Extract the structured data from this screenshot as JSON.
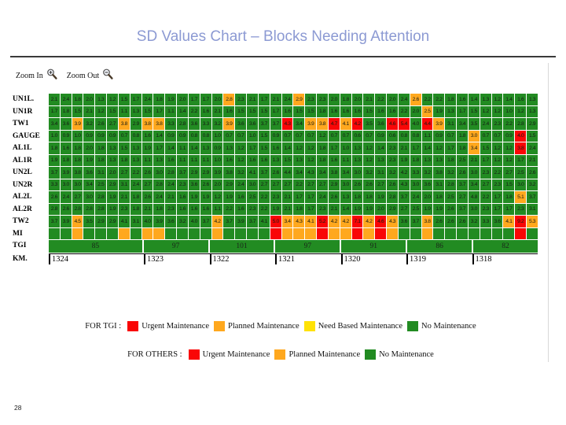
{
  "slide": {
    "title": "SD Values Chart – Blocks Needing Attention",
    "page_number": "28"
  },
  "toolbar": {
    "zoom_in_label": "Zoom In",
    "zoom_out_label": "Zoom Out"
  },
  "colors": {
    "green": "#228B22",
    "orange": "#FFA81E",
    "red": "#F90606",
    "yellow": "#FFE205",
    "title_blue": "#8C9AD3"
  },
  "chart_data": {
    "type": "heatmap",
    "title": "SD Values Chart – Blocks Needing Attention",
    "columns": 42,
    "legend_position": "bottom",
    "color_key": {
      "g": "#228B22",
      "o": "#FFA81E",
      "r": "#F90606",
      "y": "#FFE205"
    },
    "rows": [
      {
        "label": "UN1L.",
        "values": [
          2.1,
          2.4,
          1.8,
          2.0,
          1.3,
          1.2,
          1.5,
          1.7,
          2.4,
          1.8,
          1.9,
          2.0,
          1.7,
          1.7,
          2.0,
          2.8,
          2.3,
          2.1,
          1.7,
          2.1,
          2.4,
          2.9,
          2.3,
          2.3,
          2.0,
          1.8,
          2.0,
          2.1,
          2.2,
          2.0,
          2.4,
          2.6,
          2.2,
          2.2,
          1.8,
          1.6,
          1.4,
          1.3,
          1.2,
          1.4,
          1.6,
          1.3
        ],
        "colors": {
          "16": "o",
          "22": "o",
          "32": "o"
        }
      },
      {
        "label": "UN1R",
        "values": [
          1.7,
          1.8,
          1.5,
          2.1,
          1.2,
          1.5,
          1.1,
          1.3,
          1.5,
          1.7,
          1.1,
          1.4,
          2.2,
          1.6,
          2.1,
          1.6,
          1.5,
          1.5,
          1.5,
          1.7,
          1.6,
          1.5,
          1.5,
          1.8,
          1.6,
          1.6,
          1.6,
          1.5,
          1.6,
          1.6,
          2.2,
          2.0,
          2.5,
          1.9,
          1.3,
          1.7,
          1.5,
          1.2,
          1.2,
          1.0,
          1.2,
          1.3
        ],
        "colors": {
          "33": "o"
        }
      },
      {
        "label": "TW1",
        "values": [
          3.4,
          3.6,
          3.9,
          3.2,
          2.6,
          2.7,
          3.8,
          2.9,
          3.8,
          3.8,
          3.3,
          2.8,
          3.6,
          3.3,
          3.2,
          3.9,
          3.6,
          3.6,
          3.7,
          3.7,
          4.3,
          3.4,
          3.9,
          3.8,
          4.7,
          4.1,
          4.2,
          3.5,
          3.6,
          4.6,
          5.4,
          4.0,
          4.4,
          3.9,
          3.1,
          3.4,
          3.5,
          2.4,
          2.3,
          2.2,
          2.8,
          2.9
        ],
        "colors": {
          "3": "o",
          "7": "o",
          "9": "o",
          "10": "o",
          "16": "o",
          "21": "r",
          "23": "o",
          "24": "o",
          "25": "r",
          "26": "o",
          "27": "r",
          "30": "r",
          "31": "r",
          "33": "r",
          "34": "o"
        }
      },
      {
        "label": "GAUGE",
        "values": [
          1.0,
          0.9,
          1.0,
          0.9,
          0.9,
          0.9,
          0.7,
          0.8,
          1.6,
          1.4,
          0.9,
          0.9,
          0.8,
          0.8,
          1.0,
          0.7,
          0.7,
          1.0,
          1.5,
          0.9,
          0.7,
          0.7,
          0.7,
          1.2,
          0.7,
          0.7,
          0.6,
          0.7,
          0.9,
          0.6,
          0.8,
          0.8,
          1.1,
          0.9,
          0.7,
          1.8,
          3.0,
          0.7,
          0.7,
          0.9,
          4.0,
          1.5
        ],
        "colors": {
          "37": "o",
          "41": "r"
        }
      },
      {
        "label": "AL1L",
        "values": [
          1.8,
          1.6,
          1.8,
          2.0,
          1.8,
          1.3,
          1.5,
          1.3,
          1.9,
          1.7,
          1.4,
          1.1,
          1.4,
          1.3,
          0.9,
          1.3,
          1.2,
          1.7,
          1.5,
          1.6,
          1.4,
          1.2,
          1.2,
          1.8,
          1.7,
          1.0,
          1.3,
          1.2,
          1.4,
          2.3,
          2.1,
          1.7,
          1.4,
          1.2,
          1.7,
          1.8,
          3.4,
          1.5,
          1.2,
          1.2,
          3.8,
          2.4
        ],
        "colors": {
          "37": "o",
          "41": "r"
        }
      },
      {
        "label": "AL1R",
        "values": [
          1.9,
          1.8,
          1.8,
          1.9,
          1.8,
          1.3,
          1.8,
          1.3,
          1.1,
          1.3,
          1.6,
          1.1,
          1.1,
          1.1,
          1.0,
          1.6,
          1.2,
          1.6,
          1.6,
          1.3,
          1.5,
          1.3,
          1.2,
          1.8,
          1.6,
          1.1,
          1.3,
          1.2,
          1.3,
          2.3,
          1.9,
          1.8,
          1.3,
          1.3,
          1.8,
          2.5,
          2.1,
          1.7,
          1.2,
          1.2,
          1.7,
          2.1
        ],
        "colors": {}
      },
      {
        "label": "UN2L",
        "values": [
          3.7,
          3.9,
          3.8,
          3.6,
          3.1,
          2.0,
          2.7,
          2.2,
          2.6,
          3.0,
          2.8,
          3.7,
          2.9,
          2.9,
          3.9,
          3.8,
          3.2,
          4.1,
          3.7,
          2.6,
          4.4,
          3.4,
          4.3,
          3.4,
          3.8,
          3.4,
          3.0,
          3.2,
          3.1,
          3.2,
          4.2,
          3.3,
          3.2,
          3.8,
          3.2,
          2.6,
          3.0,
          2.3,
          2.2,
          2.7,
          2.5,
          2.6
        ],
        "colors": {}
      },
      {
        "label": "UN2R",
        "values": [
          3.3,
          3.0,
          3.0,
          3.4,
          2.5,
          2.9,
          3.1,
          2.4,
          2.7,
          2.8,
          2.4,
          2.3,
          3.6,
          2.6,
          2.0,
          2.9,
          2.4,
          3.0,
          2.7,
          2.7,
          2.7,
          2.2,
          2.7,
          2.7,
          2.9,
          3.0,
          2.6,
          2.6,
          2.7,
          2.6,
          4.3,
          3.0,
          3.6,
          3.1,
          2.8,
          3.7,
          3.4,
          2.7,
          2.3,
          1.5,
          3.0,
          3.2
        ],
        "colors": {}
      },
      {
        "label": "AL2L",
        "values": [
          2.6,
          2.4,
          2.7,
          3.0,
          2.8,
          1.9,
          2.1,
          1.8,
          2.6,
          2.4,
          2.1,
          1.6,
          1.9,
          1.9,
          1.2,
          1.9,
          1.6,
          2.5,
          2.2,
          2.3,
          2.1,
          1.7,
          1.7,
          2.4,
          2.6,
          1.3,
          1.8,
          1.8,
          1.9,
          2.8,
          3.7,
          2.4,
          2.0,
          1.8,
          2.5,
          2.7,
          4.8,
          2.2,
          1.7,
          1.8,
          5.1,
          3.7
        ],
        "colors": {
          "41": "o"
        }
      },
      {
        "label": "AL2R",
        "values": [
          2.8,
          2.6,
          2.8,
          2.8,
          2.8,
          1.9,
          2.3,
          1.8,
          2.1,
          1.8,
          2.3,
          1.6,
          1.6,
          1.6,
          1.1,
          2.2,
          1.6,
          2.3,
          2.2,
          1.9,
          2.1,
          1.8,
          1.7,
          2.3,
          2.1,
          1.4,
          1.9,
          1.9,
          2.0,
          2.9,
          2.7,
          2.5,
          1.9,
          1.9,
          2.6,
          3.7,
          3.0,
          2.3,
          1.7,
          1.7,
          2.3,
          3.1
        ],
        "colors": {}
      },
      {
        "label": "TW2",
        "values": [
          3.7,
          3.9,
          4.5,
          3.5,
          2.9,
          2.9,
          4.1,
          3.1,
          4.0,
          3.9,
          3.6,
          3.2,
          4.0,
          3.7,
          4.2,
          3.7,
          3.9,
          3.7,
          4.1,
          5.0,
          3.4,
          4.3,
          4.1,
          5.2,
          4.2,
          4.2,
          7.1,
          4.2,
          4.6,
          4.3,
          3.6,
          3.7,
          3.8,
          2.6,
          2.6,
          2.6,
          3.2,
          3.3,
          3.6,
          4.1,
          9.2,
          5.3
        ],
        "colors": {
          "3": "o",
          "15": "o",
          "20": "r",
          "21": "o",
          "22": "o",
          "23": "o",
          "24": "r",
          "25": "o",
          "26": "o",
          "27": "r",
          "28": "o",
          "29": "r",
          "30": "o",
          "33": "o",
          "40": "o",
          "41": "r",
          "42": "o"
        }
      }
    ],
    "mi_row": {
      "label": "MI",
      "colors": {
        "3": "o",
        "7": "o",
        "9": "o",
        "10": "o",
        "15": "o",
        "20": "r",
        "21": "o",
        "22": "o",
        "23": "o",
        "24": "r",
        "25": "o",
        "26": "o",
        "27": "r",
        "28": "o",
        "29": "r",
        "30": "o",
        "33": "o",
        "41": "r"
      }
    },
    "tgi_row": {
      "label": "TGI",
      "values": [
        85,
        97,
        101,
        97,
        91,
        86,
        82
      ]
    },
    "km_row": {
      "label": "KM.",
      "values": [
        1324,
        1323,
        1322,
        1321,
        1320,
        1319,
        1318
      ]
    },
    "legend_tgi": {
      "caption": "FOR TGI :",
      "items": [
        {
          "label": "Urgent Maintenance",
          "color": "r"
        },
        {
          "label": "Planned Maintenance",
          "color": "o"
        },
        {
          "label": "Need Based Maintenance",
          "color": "y"
        },
        {
          "label": "No Maintenance",
          "color": "g"
        }
      ]
    },
    "legend_others": {
      "caption": "FOR OTHERS :",
      "items": [
        {
          "label": "Urgent Maintenance",
          "color": "r"
        },
        {
          "label": "Planned Maintenance",
          "color": "o"
        },
        {
          "label": "No Maintenance",
          "color": "g"
        }
      ]
    }
  }
}
